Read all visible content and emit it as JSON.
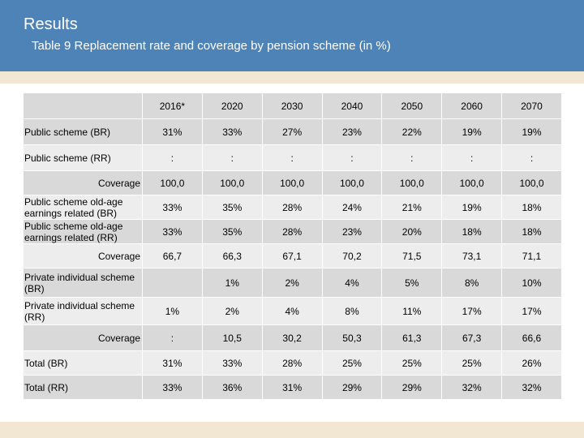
{
  "header": {
    "title": "Results",
    "subtitle": "Table 9  Replacement rate and coverage by pension scheme (in %)"
  },
  "table": {
    "columns": [
      "2016*",
      "2020",
      "2030",
      "2040",
      "2050",
      "2060",
      "2070"
    ],
    "rows": [
      {
        "label": "Public scheme (BR)",
        "values": [
          "31%",
          "33%",
          "27%",
          "23%",
          "22%",
          "19%",
          "19%"
        ]
      },
      {
        "label": "Public scheme (RR)",
        "values": [
          ":",
          ":",
          ":",
          ":",
          ":",
          ":",
          ":"
        ]
      },
      {
        "label": "Coverage",
        "values": [
          "100,0",
          "100,0",
          "100,0",
          "100,0",
          "100,0",
          "100,0",
          "100,0"
        ]
      },
      {
        "label": "Public scheme old-age earnings related (BR)",
        "values": [
          "33%",
          "35%",
          "28%",
          "24%",
          "21%",
          "19%",
          "18%"
        ]
      },
      {
        "label": "Public scheme old-age earnings related (RR)",
        "values": [
          "33%",
          "35%",
          "28%",
          "23%",
          "20%",
          "18%",
          "18%"
        ]
      },
      {
        "label": "Coverage",
        "values": [
          "66,7",
          "66,3",
          "67,1",
          "70,2",
          "71,5",
          "73,1",
          "71,1"
        ]
      },
      {
        "label": "Private individual scheme (BR)",
        "values": [
          "",
          "1%",
          "2%",
          "4%",
          "5%",
          "8%",
          "10%"
        ]
      },
      {
        "label": "Private individual scheme (RR)",
        "values": [
          "1%",
          "2%",
          "4%",
          "8%",
          "11%",
          "17%",
          "17%"
        ]
      },
      {
        "label": "Coverage",
        "values": [
          ":",
          "10,5",
          "30,2",
          "50,3",
          "61,3",
          "67,3",
          "66,6"
        ]
      },
      {
        "label": "Total (BR)",
        "values": [
          "31%",
          "33%",
          "28%",
          "25%",
          "25%",
          "25%",
          "26%"
        ]
      },
      {
        "label": "Total (RR)",
        "values": [
          "33%",
          "36%",
          "31%",
          "29%",
          "29%",
          "32%",
          "32%"
        ]
      }
    ]
  }
}
